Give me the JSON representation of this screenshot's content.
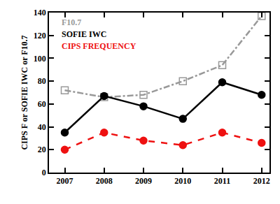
{
  "chart_data": {
    "type": "line",
    "y_label": "CIPS F or SOFIE IWC or F10.7",
    "x": [
      2007,
      2008,
      2009,
      2010,
      2011,
      2012
    ],
    "series": [
      {
        "name": "F10.7",
        "color": "#999999",
        "marker": "square-open",
        "line_style": "dashdot",
        "values": [
          72,
          66,
          68,
          80,
          94,
          137
        ]
      },
      {
        "name": "SOFIE IWC",
        "color": "#000000",
        "marker": "circle",
        "line_style": "solid",
        "values": [
          35,
          67,
          58,
          47,
          79,
          68
        ]
      },
      {
        "name": "CIPS FREQUENCY",
        "color": "#ee1111",
        "marker": "circle",
        "line_style": "dash",
        "values": [
          20,
          35,
          28,
          24,
          35,
          26
        ]
      }
    ],
    "xlim": [
      2006.6,
      2012.2
    ],
    "xticks": [
      2007,
      2008,
      2009,
      2010,
      2011,
      2012
    ],
    "ylim": [
      0,
      140
    ],
    "yticks": [
      0,
      20,
      40,
      60,
      80,
      100,
      120,
      140
    ],
    "grid": false,
    "legend": "top left"
  }
}
